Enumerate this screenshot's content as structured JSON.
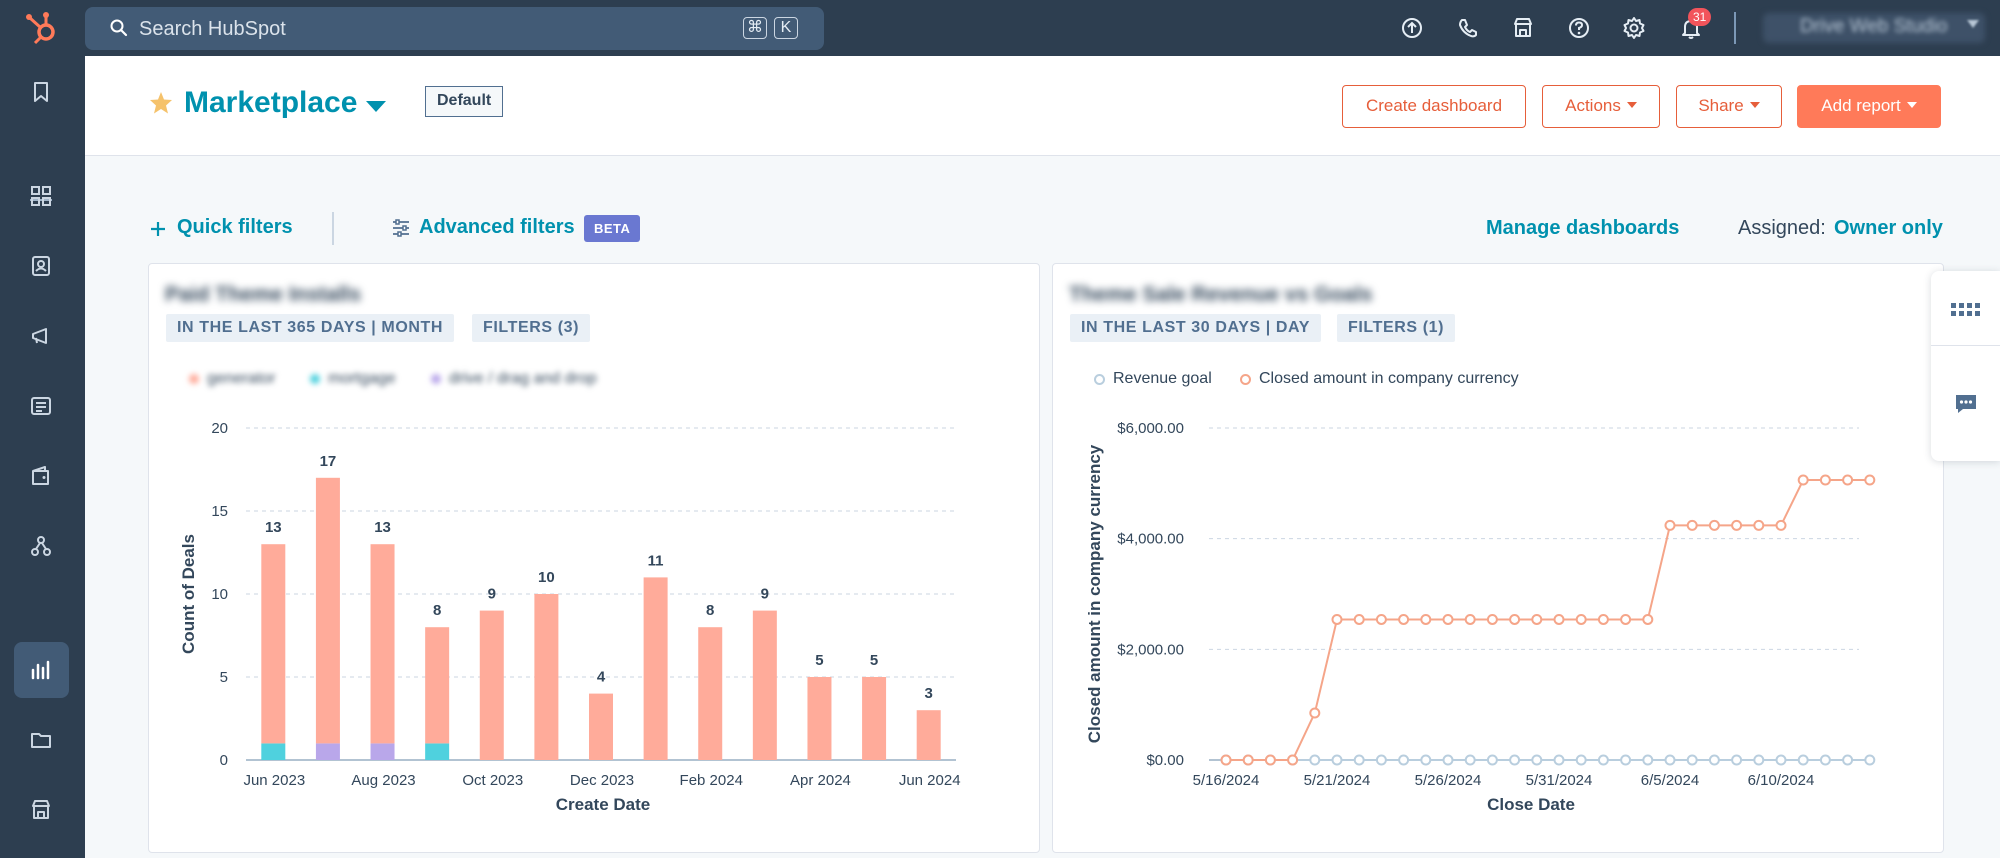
{
  "topbar": {
    "search_placeholder": "Search HubSpot",
    "shortcut_keys": [
      "⌘",
      "K"
    ],
    "notifications_count": "31",
    "account_name": "Drive Web Studio"
  },
  "header": {
    "title": "Marketplace",
    "view_tag": "Default",
    "buttons": {
      "create": "Create dashboard",
      "actions": "Actions",
      "share": "Share",
      "add_report": "Add report"
    }
  },
  "filters": {
    "quick": "Quick filters",
    "advanced": "Advanced filters",
    "beta": "BETA",
    "manage": "Manage dashboards",
    "assigned_label": "Assigned:",
    "assigned_value": "Owner only"
  },
  "colors": {
    "accent": "#0091ae",
    "orange": "#ff7a59",
    "bar_salmon": "#ffab9a",
    "bar_teal": "#4fd1de",
    "bar_lavender": "#b9a7ea",
    "line_orange": "#f5a589",
    "line_gray": "#b9cede",
    "nav_bg": "#2d3e50"
  },
  "cards": [
    {
      "title": "Paid Theme Installs",
      "tags": [
        "IN THE LAST 365 DAYS | MONTH",
        "FILTERS (3)"
      ],
      "legend": [
        "generator",
        "mortgage",
        "drive / drag and drop"
      ]
    },
    {
      "title": "Theme Sale Revenue vs Goals",
      "tags": [
        "IN THE LAST 30 DAYS | DAY",
        "FILTERS (1)"
      ],
      "legend": [
        "Revenue goal",
        "Closed amount in company currency"
      ]
    }
  ],
  "chart_data": [
    {
      "type": "bar",
      "stacked": true,
      "xlabel": "Create Date",
      "ylabel": "Count of Deals",
      "ylim": [
        0,
        20
      ],
      "yticks": [
        "0",
        "5",
        "10",
        "15",
        "20"
      ],
      "categories": [
        "Jun 2023",
        "Jul 2023",
        "Aug 2023",
        "Sep 2023",
        "Oct 2023",
        "Nov 2023",
        "Dec 2023",
        "Jan 2024",
        "Feb 2024",
        "Mar 2024",
        "Apr 2024",
        "May 2024",
        "Jun 2024"
      ],
      "xtick_labels": [
        "Jun 2023",
        "Aug 2023",
        "Oct 2023",
        "Dec 2023",
        "Feb 2024",
        "Apr 2024",
        "Jun 2024"
      ],
      "totals": [
        13,
        17,
        13,
        8,
        9,
        10,
        4,
        11,
        8,
        9,
        5,
        5,
        3
      ],
      "series": [
        {
          "name": "generator",
          "color": "#ffab9a",
          "values": [
            12,
            16,
            12,
            7,
            9,
            10,
            4,
            11,
            8,
            9,
            5,
            5,
            3
          ]
        },
        {
          "name": "mortgage",
          "color": "#4fd1de",
          "values": [
            1,
            0,
            0,
            1,
            0,
            0,
            0,
            0,
            0,
            0,
            0,
            0,
            0
          ]
        },
        {
          "name": "drive / drag and drop",
          "color": "#b9a7ea",
          "values": [
            0,
            1,
            1,
            0,
            0,
            0,
            0,
            0,
            0,
            0,
            0,
            0,
            0
          ]
        }
      ],
      "grid": true,
      "legend_position": "top-left"
    },
    {
      "type": "line",
      "xlabel": "Close Date",
      "ylabel": "Closed amount in company currency",
      "ylim": [
        0,
        6000
      ],
      "yticks": [
        "$0.00",
        "$2,000.00",
        "$4,000.00",
        "$6,000.00"
      ],
      "x": [
        "5/16/2024",
        "5/17/2024",
        "5/18/2024",
        "5/19/2024",
        "5/20/2024",
        "5/21/2024",
        "5/22/2024",
        "5/23/2024",
        "5/24/2024",
        "5/25/2024",
        "5/26/2024",
        "5/27/2024",
        "5/28/2024",
        "5/29/2024",
        "5/30/2024",
        "5/31/2024",
        "6/1/2024",
        "6/2/2024",
        "6/3/2024",
        "6/4/2024",
        "6/5/2024",
        "6/6/2024",
        "6/7/2024",
        "6/8/2024",
        "6/9/2024",
        "6/10/2024",
        "6/11/2024",
        "6/12/2024",
        "6/13/2024",
        "6/14/2024"
      ],
      "xtick_labels": [
        "5/16/2024",
        "5/21/2024",
        "5/26/2024",
        "5/31/2024",
        "6/5/2024",
        "6/10/2024"
      ],
      "series": [
        {
          "name": "Revenue goal",
          "color": "#b9cede",
          "values": [
            0,
            0,
            0,
            0,
            0,
            0,
            0,
            0,
            0,
            0,
            0,
            0,
            0,
            0,
            0,
            0,
            0,
            0,
            0,
            0,
            0,
            0,
            0,
            0,
            0,
            0,
            0,
            0,
            0,
            0
          ]
        },
        {
          "name": "Closed amount in company currency",
          "color": "#f5a589",
          "values": [
            0,
            0,
            0,
            0,
            850,
            2540,
            2540,
            2540,
            2540,
            2540,
            2540,
            2540,
            2540,
            2540,
            2540,
            2540,
            2540,
            2540,
            2540,
            2540,
            4240,
            4240,
            4240,
            4240,
            4240,
            4240,
            5060,
            5060,
            5060,
            5060
          ]
        }
      ],
      "grid": true,
      "legend_position": "top-left"
    }
  ]
}
